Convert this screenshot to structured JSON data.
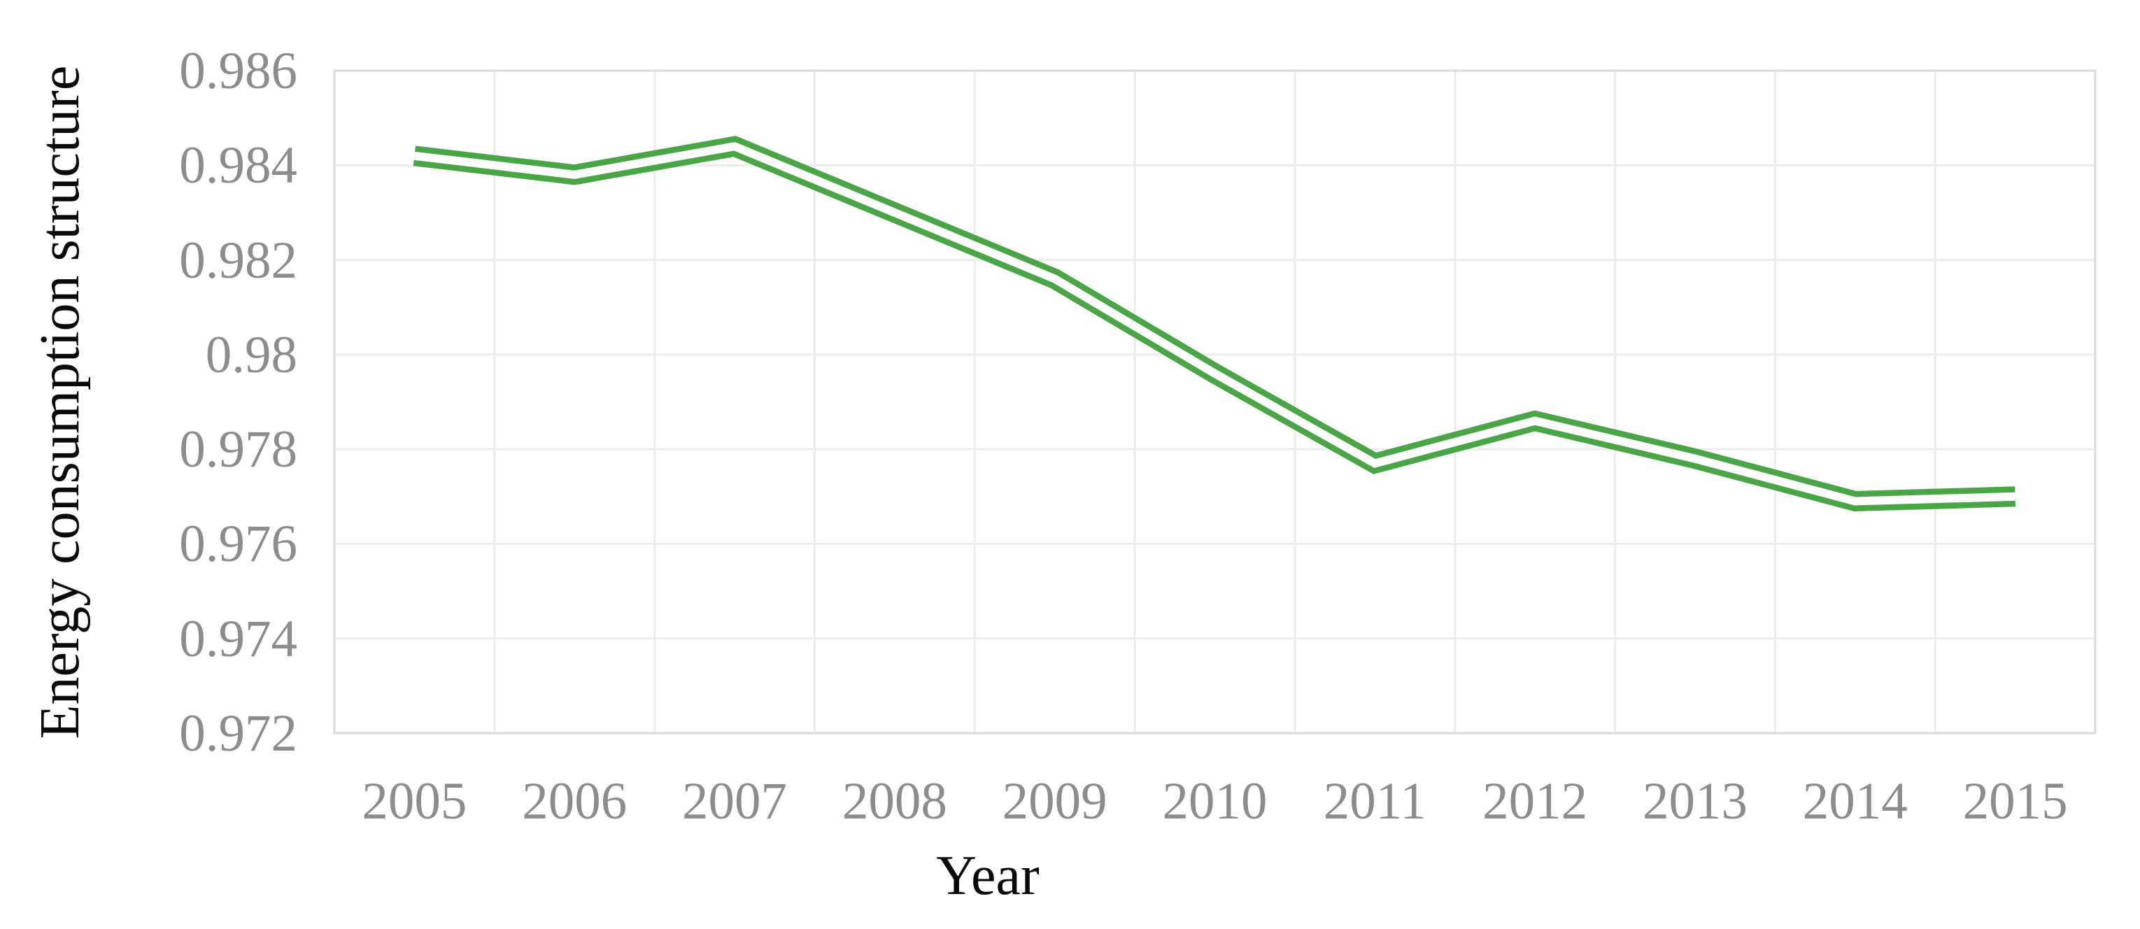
{
  "chart_data": {
    "type": "line",
    "title": "",
    "xlabel": "Year",
    "ylabel": "Energy consumption structure",
    "categories": [
      "2005",
      "2006",
      "2007",
      "2008",
      "2009",
      "2010",
      "2011",
      "2012",
      "2013",
      "2014",
      "2015"
    ],
    "series": [
      {
        "name": "Energy consumption structure",
        "values": [
          0.9842,
          0.9838,
          0.9844,
          0.983,
          0.9816,
          0.9796,
          0.9777,
          0.9786,
          0.9778,
          0.9769,
          0.977
        ],
        "color": "#4aa546",
        "line_style": "double"
      }
    ],
    "y_axis": {
      "min": 0.972,
      "max": 0.986,
      "tick_step": 0.002,
      "tick_labels": [
        "0.986",
        "0.984",
        "0.982",
        "0.98",
        "0.978",
        "0.976",
        "0.974",
        "0.972"
      ]
    },
    "x_axis": {
      "tick_labels": [
        "2005",
        "2006",
        "2007",
        "2008",
        "2009",
        "2010",
        "2011",
        "2012",
        "2013",
        "2014",
        "2015"
      ]
    },
    "grid": {
      "horizontal": true,
      "vertical": true
    },
    "legend": "none",
    "colors": {
      "line": "#4aa546",
      "gridline": "#ececec",
      "plot_border": "#d9d9d9",
      "tick_text": "#8c8c8c",
      "axis_title_text": "#0a0a0a",
      "background": "#ffffff"
    }
  }
}
